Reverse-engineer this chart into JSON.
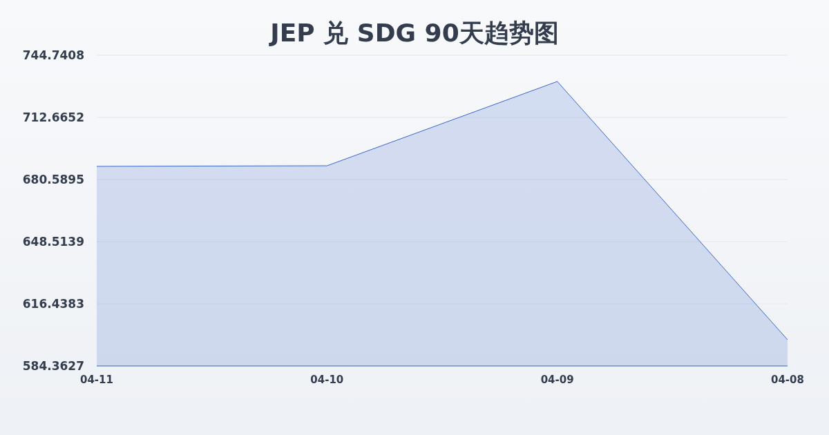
{
  "chart_data": {
    "type": "area",
    "title": "JEP 兑 SDG 90天趋势图",
    "categories": [
      "04-11",
      "04-10",
      "04-09",
      "04-08"
    ],
    "series": [
      {
        "color": "#3a66c8",
        "values": [
          687.4,
          687.7,
          731.2,
          597.9
        ]
      }
    ],
    "ylim": [
      584.3627,
      744.7408
    ],
    "yticks": [
      584.3627,
      616.4383,
      648.5139,
      680.5895,
      712.6652,
      744.7408
    ],
    "grid": "y"
  }
}
